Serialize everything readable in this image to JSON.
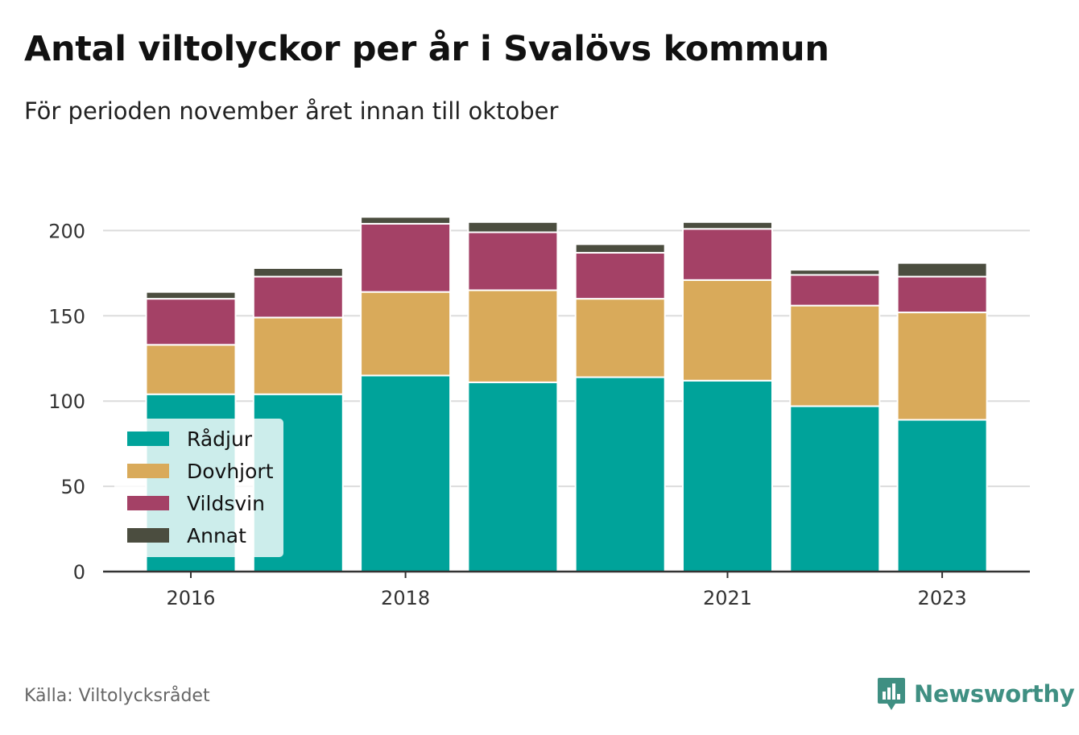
{
  "title": "Antal viltolyckor per år i Svalövs kommun",
  "subtitle": "För perioden november året innan till oktober",
  "source": "Källa: Viltolycksrådet",
  "brand": {
    "name": "Newsworthy",
    "logo_icon": "bar-chart-speech-bubble-icon"
  },
  "chart_data": {
    "type": "bar",
    "stacked": true,
    "categories": [
      "2016",
      "2017",
      "2018",
      "2019",
      "2020",
      "2021",
      "2022",
      "2023"
    ],
    "x_tick_labels": [
      "2016",
      "2018",
      "2021",
      "2023"
    ],
    "series": [
      {
        "name": "Rådjur",
        "color": "#00a39a",
        "values": [
          104,
          104,
          115,
          111,
          114,
          112,
          97,
          89
        ]
      },
      {
        "name": "Dovhjort",
        "color": "#d9aa5a",
        "values": [
          29,
          45,
          49,
          54,
          46,
          59,
          59,
          63
        ]
      },
      {
        "name": "Vildsvin",
        "color": "#a44166",
        "values": [
          27,
          24,
          40,
          34,
          27,
          30,
          18,
          21
        ]
      },
      {
        "name": "Annat",
        "color": "#4b4d3f",
        "values": [
          4,
          5,
          4,
          6,
          5,
          4,
          3,
          8
        ]
      }
    ],
    "y_ticks": [
      0,
      50,
      100,
      150,
      200
    ],
    "ylim": [
      0,
      210
    ],
    "grid": true,
    "legend_position": "bottom-left"
  }
}
